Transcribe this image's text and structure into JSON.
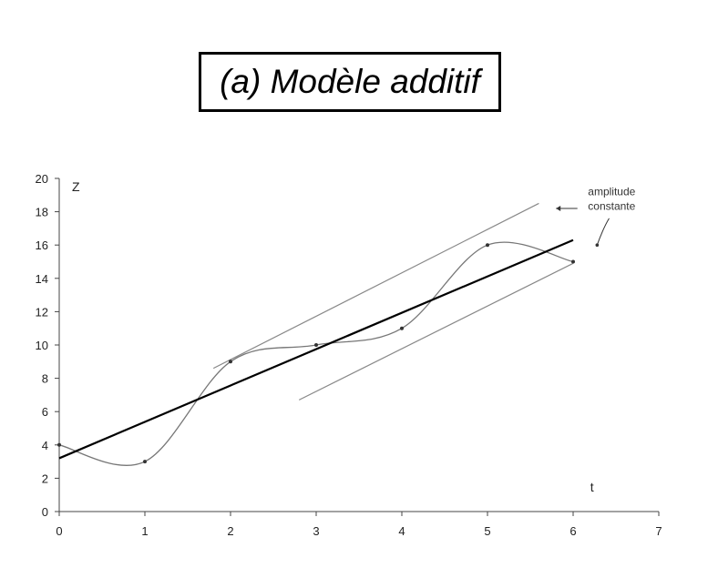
{
  "chart_data": {
    "type": "line",
    "title": "(a) Modèle additif",
    "ylabel": "Z",
    "xlabel": "t",
    "xlim": [
      0,
      7
    ],
    "ylim": [
      0,
      20
    ],
    "x_ticks": [
      0,
      1,
      2,
      3,
      4,
      5,
      6,
      7
    ],
    "y_ticks": [
      0,
      2,
      4,
      6,
      8,
      10,
      12,
      14,
      16,
      18,
      20
    ],
    "grid": false,
    "series": [
      {
        "values": [
          [
            0,
            4
          ],
          [
            1,
            3
          ],
          [
            2,
            9
          ],
          [
            3,
            10
          ],
          [
            4,
            11
          ],
          [
            5,
            16
          ],
          [
            6,
            15
          ]
        ]
      }
    ],
    "trend": {
      "from": [
        0,
        3.2
      ],
      "to": [
        6,
        16.3
      ]
    },
    "envelope_upper": {
      "from": [
        1.8,
        8.6
      ],
      "to": [
        5.6,
        18.5
      ]
    },
    "envelope_lower": {
      "from": [
        2.8,
        6.7
      ],
      "to": [
        6,
        14.9
      ]
    },
    "annotation": {
      "lines": [
        "amplitude",
        "constante"
      ]
    },
    "colors": {
      "trend": "#000000",
      "curve": "#777777",
      "envelope": "#888888",
      "axis": "#444444"
    }
  }
}
